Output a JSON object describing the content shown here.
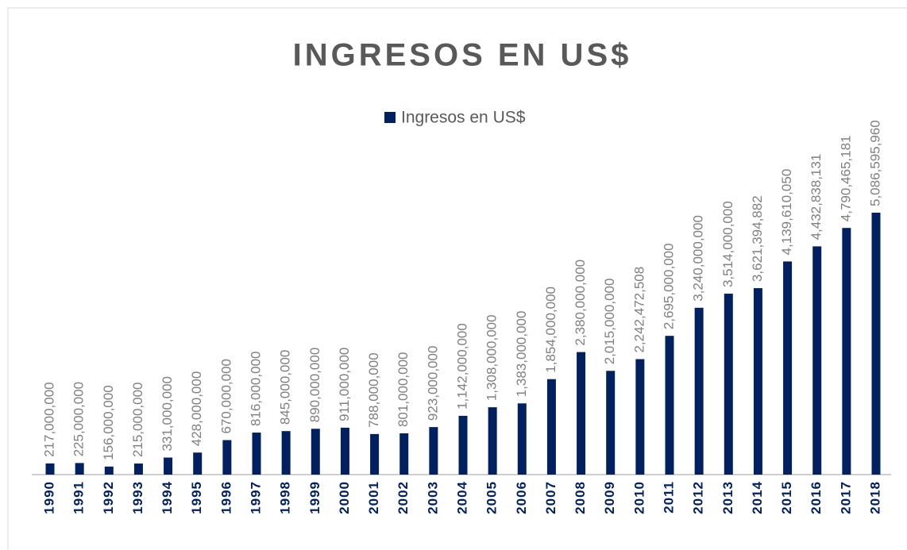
{
  "chart_data": {
    "type": "bar",
    "title": "INGRESOS EN US$",
    "categories": [
      "1990",
      "1991",
      "1992",
      "1993",
      "1994",
      "1995",
      "1996",
      "1997",
      "1998",
      "1999",
      "2000",
      "2001",
      "2002",
      "2003",
      "2004",
      "2005",
      "2006",
      "2007",
      "2008",
      "2009",
      "2010",
      "2011",
      "2012",
      "2013",
      "2014",
      "2015",
      "2016",
      "2017",
      "2018"
    ],
    "series": [
      {
        "name": "Ingresos en US$",
        "color": "#002060",
        "values": [
          217000000,
          225000000,
          156000000,
          215000000,
          331000000,
          428000000,
          670000000,
          816000000,
          845000000,
          890000000,
          911000000,
          788000000,
          801000000,
          923000000,
          1142000000,
          1308000000,
          1383000000,
          1854000000,
          2380000000,
          2015000000,
          2242472508,
          2695000000,
          3240000000,
          3514000000,
          3621394882,
          4139610050,
          4432838131,
          4790465181,
          5086595960
        ],
        "value_labels": [
          "217,000,000",
          "225,000,000",
          "156,000,000",
          "215,000,000",
          "331,000,000",
          "428,000,000",
          "670,000,000",
          "816,000,000",
          "845,000,000",
          "890,000,000",
          "911,000,000",
          "788,000,000",
          "801,000,000",
          "923,000,000",
          "1,142,000,000",
          "1,308,000,000",
          "1,383,000,000",
          "1,854,000,000",
          "2,380,000,000",
          "2,015,000,000",
          "2,242,472,508",
          "2,695,000,000",
          "3,240,000,000",
          "3,514,000,000",
          "3,621,394,882",
          "4,139,610,050",
          "4,432,838,131",
          "4,790,465,181",
          "5,086,595,960"
        ]
      }
    ],
    "legend": "top"
  }
}
